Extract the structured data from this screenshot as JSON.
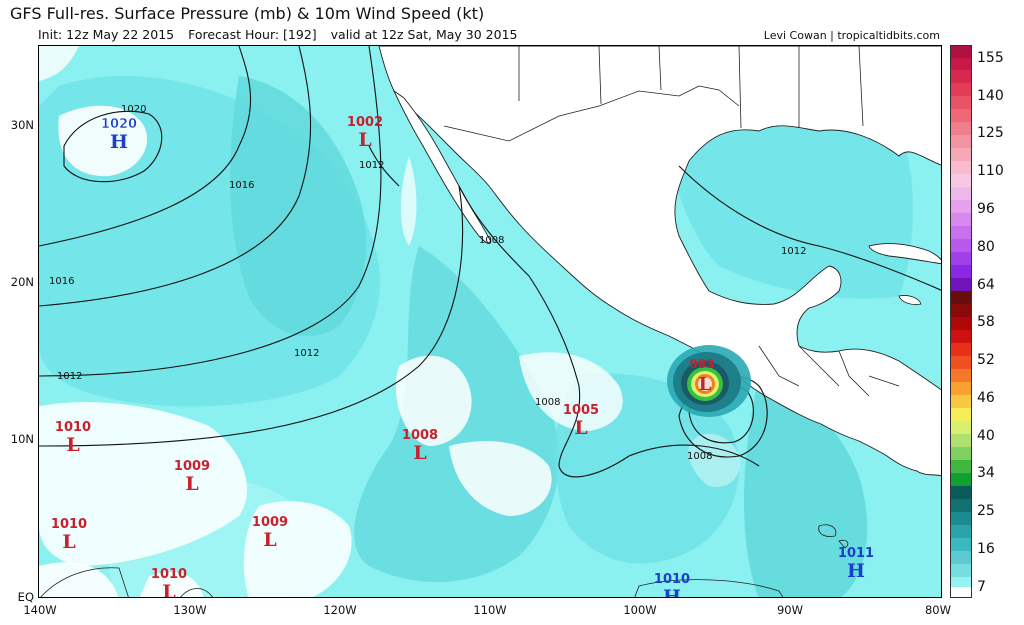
{
  "header": {
    "title": "GFS Full-res. Surface Pressure (mb) & 10m Wind Speed (kt)",
    "init": "Init: 12z May 22 2015",
    "forecast_hour": "Forecast Hour: [192]",
    "valid": "valid at 12z Sat, May 30 2015",
    "credit": "Levi Cowan | tropicaltidbits.com"
  },
  "axes": {
    "lat_ticks": [
      "30N",
      "20N",
      "10N",
      "EQ"
    ],
    "lon_ticks": [
      "140W",
      "130W",
      "120W",
      "110W",
      "100W",
      "90W",
      "80W"
    ]
  },
  "colorbar": {
    "labels": [
      "155",
      "140",
      "125",
      "110",
      "96",
      "80",
      "64",
      "58",
      "52",
      "46",
      "40",
      "34",
      "25",
      "16",
      "7"
    ]
  },
  "isobar_labels": [
    "1020",
    "1016",
    "1016",
    "1012",
    "1012",
    "1012",
    "1012",
    "1008",
    "1008",
    "1008"
  ],
  "pressure_systems": [
    {
      "type": "H",
      "value": "1020"
    },
    {
      "type": "L",
      "value": "1002"
    },
    {
      "type": "L",
      "value": "1010"
    },
    {
      "type": "L",
      "value": "1009"
    },
    {
      "type": "L",
      "value": "1010"
    },
    {
      "type": "L",
      "value": "1010"
    },
    {
      "type": "L",
      "value": "1009"
    },
    {
      "type": "L",
      "value": "1008"
    },
    {
      "type": "L",
      "value": "1005"
    },
    {
      "type": "L",
      "value": "983"
    },
    {
      "type": "H",
      "value": "1010"
    },
    {
      "type": "H",
      "value": "1011"
    }
  ],
  "colors": {
    "high": "#1a3fc8",
    "low": "#c8202c",
    "land": "#ffffff",
    "wind_light": "#8af0f0",
    "wind_mid": "#5fd8dc",
    "wind_strong": "#3ab8c4"
  }
}
